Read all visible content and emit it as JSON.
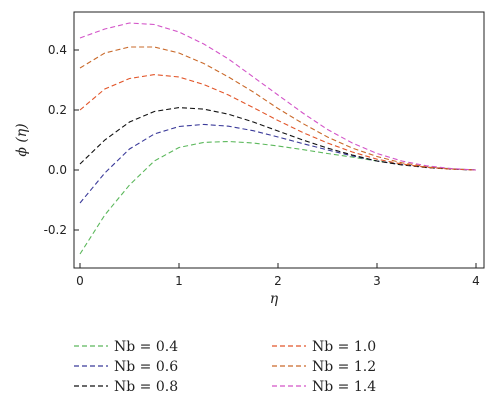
{
  "chart_data": {
    "type": "line",
    "title": "",
    "xlabel": "η",
    "ylabel": "ϕ (η)",
    "xlim": [
      0,
      4
    ],
    "ylim": [
      -0.32,
      0.52
    ],
    "x_ticks": [
      0,
      1,
      2,
      3,
      4
    ],
    "y_ticks": [
      -0.2,
      0.0,
      0.2,
      0.4
    ],
    "x_tick_labels": [
      "0",
      "1",
      "2",
      "3",
      "4"
    ],
    "y_tick_labels": [
      "-0.2",
      "0.0",
      "0.2",
      "0.4"
    ],
    "grid": false,
    "line_style": "dashed",
    "legend_position": "below",
    "x": [
      0,
      0.25,
      0.5,
      0.75,
      1,
      1.25,
      1.5,
      1.75,
      2,
      2.25,
      2.5,
      2.75,
      3,
      3.25,
      3.5,
      3.75,
      4
    ],
    "series": [
      {
        "name": "Nb = 0.4",
        "color": "#5cb85c",
        "values": [
          -0.28,
          -0.15,
          -0.05,
          0.03,
          0.075,
          0.092,
          0.095,
          0.09,
          0.08,
          0.068,
          0.055,
          0.043,
          0.03,
          0.019,
          0.01,
          0.004,
          0.0
        ]
      },
      {
        "name": "Nb = 0.6",
        "color": "#3b3b9a",
        "values": [
          -0.11,
          -0.01,
          0.07,
          0.12,
          0.145,
          0.152,
          0.146,
          0.131,
          0.11,
          0.088,
          0.067,
          0.047,
          0.03,
          0.018,
          0.009,
          0.003,
          0.0
        ]
      },
      {
        "name": "Nb = 0.8",
        "color": "#111111",
        "values": [
          0.02,
          0.1,
          0.16,
          0.195,
          0.208,
          0.203,
          0.186,
          0.16,
          0.13,
          0.1,
          0.073,
          0.05,
          0.03,
          0.017,
          0.008,
          0.003,
          0.0
        ]
      },
      {
        "name": "Nb = 1.0",
        "color": "#e2562a",
        "values": [
          0.2,
          0.27,
          0.305,
          0.318,
          0.31,
          0.285,
          0.25,
          0.208,
          0.165,
          0.125,
          0.09,
          0.06,
          0.036,
          0.02,
          0.009,
          0.003,
          0.0
        ]
      },
      {
        "name": "Nb = 1.2",
        "color": "#c9692a",
        "values": [
          0.34,
          0.39,
          0.41,
          0.41,
          0.39,
          0.355,
          0.31,
          0.26,
          0.205,
          0.155,
          0.11,
          0.073,
          0.045,
          0.024,
          0.011,
          0.004,
          0.0
        ]
      },
      {
        "name": "Nb = 1.4",
        "color": "#d354c8",
        "values": [
          0.44,
          0.47,
          0.49,
          0.485,
          0.46,
          0.42,
          0.37,
          0.31,
          0.25,
          0.19,
          0.135,
          0.09,
          0.055,
          0.03,
          0.014,
          0.005,
          0.0
        ]
      }
    ]
  }
}
